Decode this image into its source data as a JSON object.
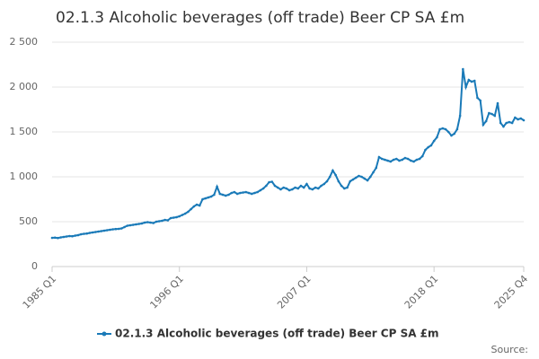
{
  "chart_data": {
    "type": "line",
    "title": "02.1.3 Alcoholic beverages (off trade) Beer CP SA £m",
    "source": "Source:",
    "categories": [
      "1985 Q1",
      null,
      null,
      null,
      null,
      null,
      null,
      null,
      null,
      null,
      null,
      null,
      null,
      null,
      null,
      null,
      null,
      null,
      null,
      null,
      null,
      null,
      null,
      null,
      null,
      null,
      null,
      null,
      null,
      null,
      null,
      null,
      null,
      null,
      null,
      null,
      null,
      null,
      null,
      null,
      null,
      null,
      null,
      null,
      "1996 Q1",
      null,
      null,
      null,
      null,
      null,
      null,
      null,
      null,
      null,
      null,
      null,
      null,
      null,
      null,
      null,
      null,
      null,
      null,
      null,
      null,
      null,
      null,
      null,
      null,
      null,
      null,
      null,
      null,
      null,
      null,
      null,
      null,
      null,
      null,
      null,
      null,
      null,
      null,
      null,
      null,
      null,
      null,
      null,
      "2007 Q1",
      null,
      null,
      null,
      null,
      null,
      null,
      null,
      null,
      null,
      null,
      null,
      null,
      null,
      null,
      null,
      null,
      null,
      null,
      null,
      null,
      null,
      null,
      null,
      null,
      null,
      null,
      null,
      null,
      null,
      null,
      null,
      null,
      null,
      null,
      null,
      null,
      null,
      null,
      null,
      null,
      null,
      null,
      null,
      "2018 Q1",
      null,
      null,
      null,
      null,
      null,
      null,
      null,
      null,
      null,
      null,
      null,
      null,
      null,
      null,
      null,
      null,
      null,
      null,
      null,
      null,
      null,
      null,
      null,
      null,
      null,
      null,
      null,
      null,
      null,
      null,
      "2025 Q4"
    ],
    "series": [
      {
        "name": "02.1.3 Alcoholic beverages (off trade) Beer CP SA £m",
        "color": "#1a7ab8",
        "values": [
          320,
          322,
          318,
          325,
          330,
          335,
          340,
          338,
          345,
          350,
          360,
          365,
          368,
          375,
          380,
          385,
          390,
          395,
          400,
          405,
          410,
          415,
          418,
          420,
          425,
          440,
          455,
          460,
          465,
          470,
          475,
          480,
          490,
          495,
          490,
          485,
          500,
          505,
          510,
          520,
          515,
          540,
          545,
          550,
          560,
          575,
          590,
          610,
          640,
          670,
          690,
          680,
          750,
          760,
          770,
          780,
          800,
          890,
          810,
          800,
          790,
          800,
          820,
          830,
          810,
          820,
          825,
          830,
          820,
          810,
          820,
          830,
          850,
          870,
          900,
          940,
          945,
          900,
          880,
          860,
          880,
          870,
          850,
          860,
          880,
          870,
          900,
          880,
          920,
          870,
          860,
          880,
          870,
          900,
          920,
          950,
          1000,
          1070,
          1020,
          950,
          900,
          870,
          880,
          950,
          970,
          990,
          1010,
          1000,
          980,
          960,
          1000,
          1050,
          1100,
          1220,
          1200,
          1190,
          1180,
          1170,
          1190,
          1200,
          1180,
          1190,
          1210,
          1200,
          1180,
          1170,
          1190,
          1200,
          1230,
          1300,
          1330,
          1350,
          1400,
          1440,
          1530,
          1540,
          1530,
          1500,
          1460,
          1480,
          1530,
          1680,
          2200,
          2000,
          2080,
          2060,
          2070,
          1880,
          1850,
          1580,
          1620,
          1710,
          1700,
          1680,
          1820,
          1600,
          1560,
          1600,
          1610,
          1600,
          1660,
          1640,
          1650,
          1630
        ]
      }
    ],
    "ylim": [
      0,
      2500
    ],
    "yticks": [
      0,
      500,
      {
        "value": 1000,
        "label": "1 000"
      },
      {
        "value": 1500,
        "label": "1 500"
      },
      {
        "value": 2000,
        "label": "2 000"
      },
      {
        "value": 2500,
        "label": "2 500"
      }
    ],
    "grid": true
  }
}
